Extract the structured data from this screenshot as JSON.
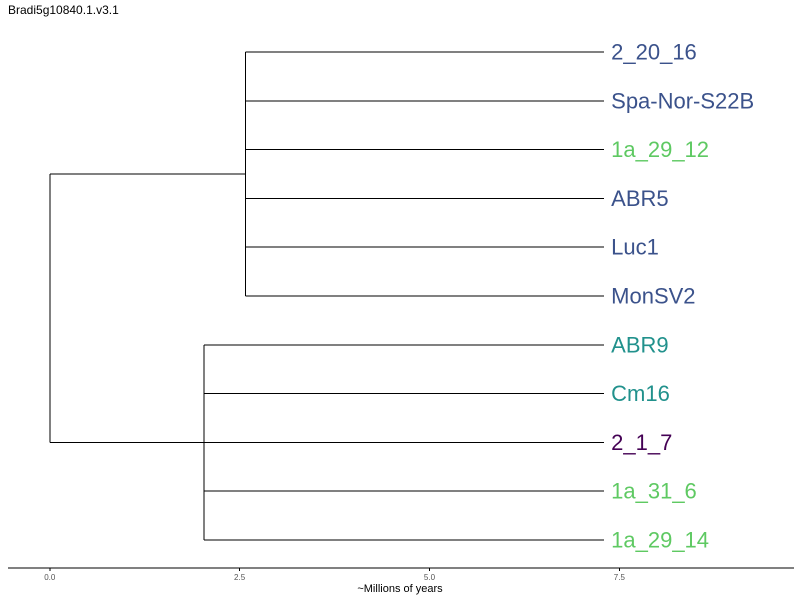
{
  "title": "Bradi5g10840.1.v3.1",
  "chart_data": {
    "type": "dendrogram",
    "xlabel": "~Millions of years",
    "xlim": [
      -0.55,
      9.8
    ],
    "xticks": [
      0.0,
      2.5,
      5.0,
      7.5
    ],
    "xtick_labels": [
      "0.0",
      "2.5",
      "5.0",
      "7.5"
    ],
    "leaf_x": 7.3,
    "leaves": [
      {
        "label": "2_20_16",
        "color": "#3b528b"
      },
      {
        "label": "Spa-Nor-S22B",
        "color": "#3b528b"
      },
      {
        "label": "1a_29_12",
        "color": "#5ec962"
      },
      {
        "label": "ABR5",
        "color": "#3b528b"
      },
      {
        "label": "Luc1",
        "color": "#3b528b"
      },
      {
        "label": "MonSV2",
        "color": "#3b528b"
      },
      {
        "label": "ABR9",
        "color": "#21918c"
      },
      {
        "label": "Cm16",
        "color": "#21918c"
      },
      {
        "label": "2_1_7",
        "color": "#440154"
      },
      {
        "label": "1a_31_6",
        "color": "#5ec962"
      },
      {
        "label": "1a_29_14",
        "color": "#5ec962"
      }
    ],
    "clades": [
      {
        "node_x": 0.0,
        "children": [
          {
            "node_x": 2.58,
            "leaves": [
              0,
              1,
              2,
              3,
              4,
              5
            ]
          },
          {
            "node_x": 2.03,
            "leaves": [
              6,
              7,
              8,
              9,
              10
            ]
          }
        ]
      }
    ]
  }
}
